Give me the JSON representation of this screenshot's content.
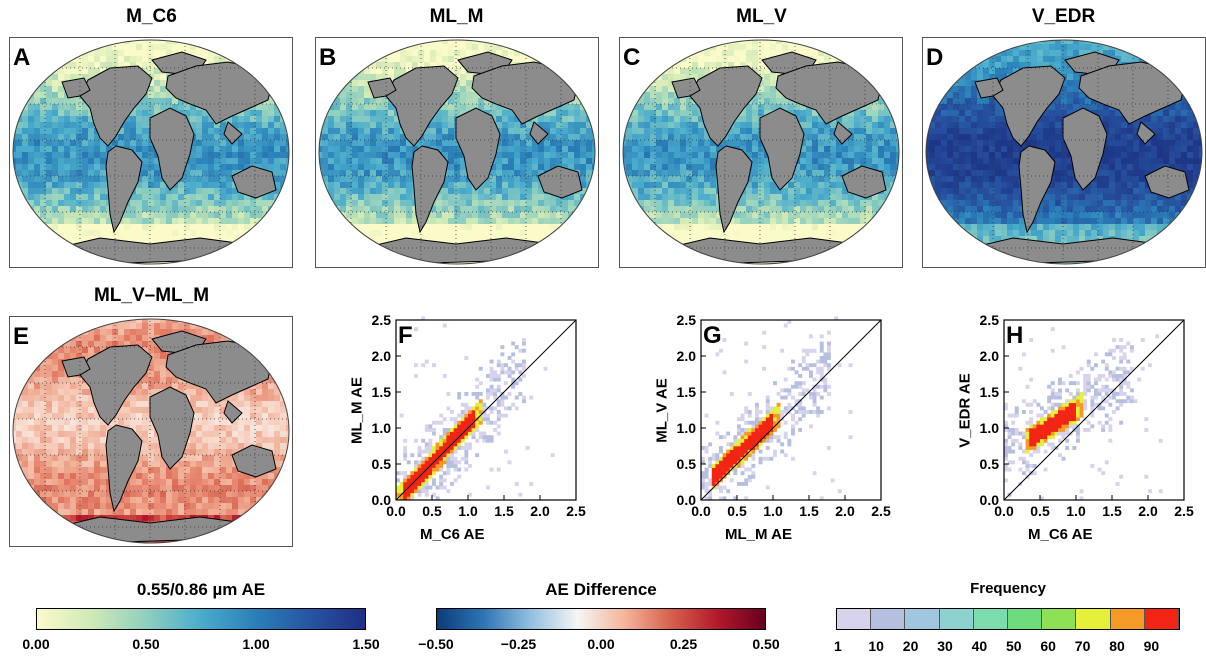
{
  "maps": [
    {
      "id": "A",
      "title": "M_C6",
      "palette": "ae"
    },
    {
      "id": "B",
      "title": "ML_M",
      "palette": "ae"
    },
    {
      "id": "C",
      "title": "ML_V",
      "palette": "ae"
    },
    {
      "id": "D",
      "title": "V_EDR",
      "palette": "ae_dark"
    },
    {
      "id": "E",
      "title": "ML_V–ML_M",
      "palette": "diff"
    }
  ],
  "scatter_panels": [
    {
      "id": "F",
      "xlabel": "M_C6 AE",
      "ylabel": "ML_M AE"
    },
    {
      "id": "G",
      "xlabel": "ML_M AE",
      "ylabel": "ML_V AE"
    },
    {
      "id": "H",
      "xlabel": "M_C6 AE",
      "ylabel": "V_EDR AE"
    }
  ],
  "scatter_ticks": [
    "0.0",
    "0.5",
    "1.0",
    "1.5",
    "2.0",
    "2.5"
  ],
  "colorbars": {
    "ae": {
      "title": "0.55/0.86 µm AE",
      "ticks": [
        "0.00",
        "0.50",
        "1.00",
        "1.50"
      ],
      "colors": [
        "#fbfbc9",
        "#cfe9b5",
        "#8fcfbf",
        "#4aaccc",
        "#2a7fb8",
        "#2754a2",
        "#1f2f86"
      ]
    },
    "diff": {
      "title": "AE Difference",
      "ticks": [
        "−0.50",
        "−0.25",
        "0.00",
        "0.25",
        "0.50"
      ],
      "colors": [
        "#0b3c7a",
        "#2f75b5",
        "#92c0df",
        "#f5f5f5",
        "#f4b59a",
        "#d6604d",
        "#b2182b",
        "#67001f"
      ]
    },
    "freq": {
      "title": "Frequency",
      "ticks": [
        "1",
        "10",
        "20",
        "30",
        "40",
        "50",
        "60",
        "70",
        "80",
        "90"
      ],
      "colors": [
        "#d7d3ec",
        "#b5bfe0",
        "#a1c6e0",
        "#8ed2cf",
        "#7ddcae",
        "#6edc7d",
        "#8ee055",
        "#e6ef3a",
        "#f59a26",
        "#f22414"
      ]
    }
  },
  "chart_data": [
    {
      "type": "heatmap",
      "panel": "F",
      "xlabel": "M_C6 AE",
      "ylabel": "ML_M AE",
      "xlim": [
        0,
        2.5
      ],
      "ylim": [
        0,
        2.5
      ],
      "one_to_one_line": true,
      "dense_region": {
        "from": [
          0.05,
          0.05
        ],
        "to": [
          1.1,
          1.15
        ]
      }
    },
    {
      "type": "heatmap",
      "panel": "G",
      "xlabel": "ML_M AE",
      "ylabel": "ML_V AE",
      "xlim": [
        0,
        2.5
      ],
      "ylim": [
        0,
        2.5
      ],
      "one_to_one_line": true,
      "dense_region": {
        "from": [
          0.15,
          0.3
        ],
        "to": [
          1.0,
          1.1
        ]
      }
    },
    {
      "type": "heatmap",
      "panel": "H",
      "xlabel": "M_C6 AE",
      "ylabel": "V_EDR AE",
      "xlim": [
        0,
        2.5
      ],
      "ylim": [
        0,
        2.5
      ],
      "one_to_one_line": true,
      "dense_region": {
        "from": [
          0.3,
          0.8
        ],
        "to": [
          1.0,
          1.25
        ]
      }
    }
  ]
}
